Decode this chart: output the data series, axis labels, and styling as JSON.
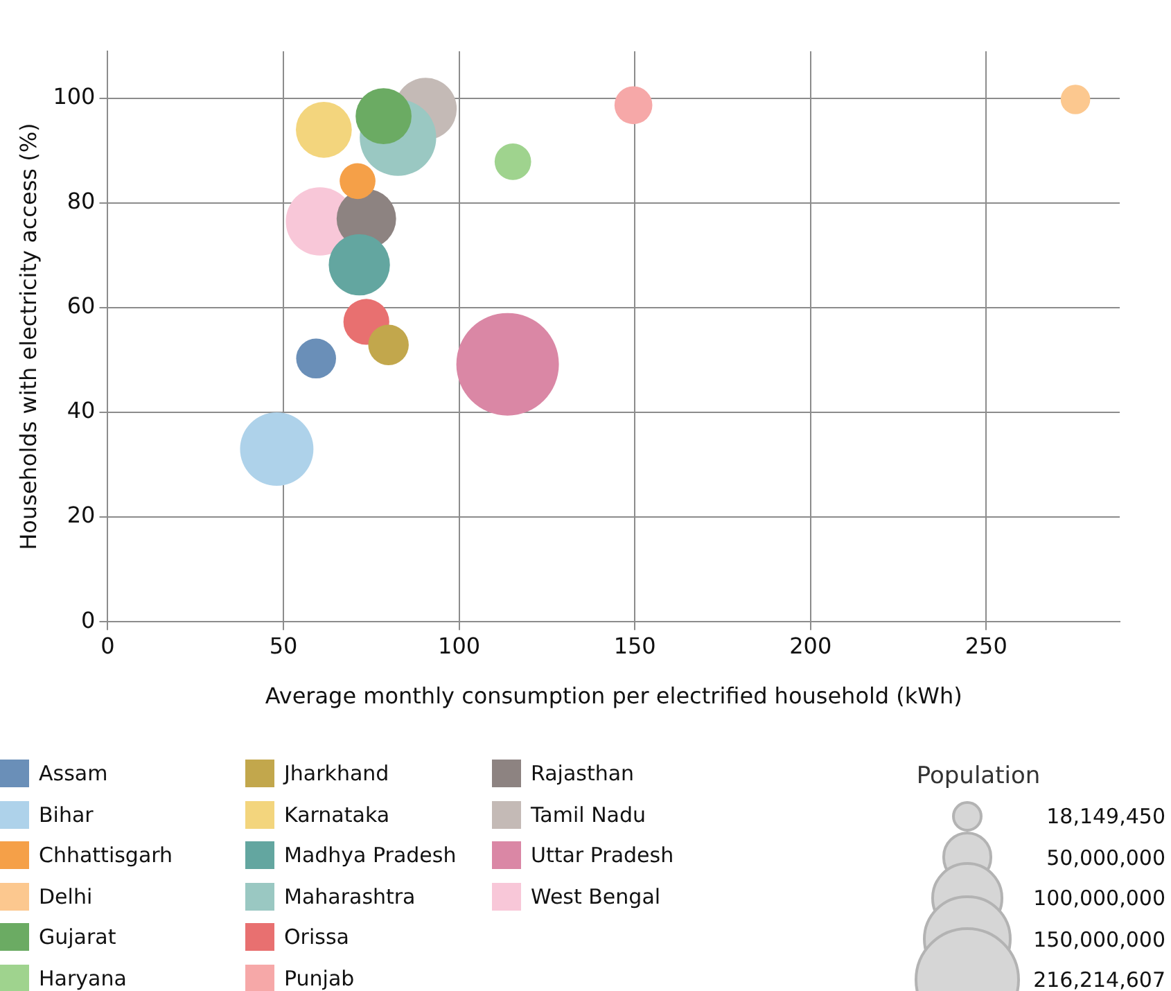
{
  "chart_data": {
    "type": "bubble",
    "xlabel": "Average monthly consumption per electrified household (kWh)",
    "ylabel": "Households with electricity access (%)",
    "legend_title": "Population",
    "xlim": [
      0,
      288
    ],
    "ylim": [
      0,
      109
    ],
    "xticks": [
      0,
      50,
      100,
      150,
      200,
      250
    ],
    "yticks": [
      0,
      20,
      40,
      60,
      80,
      100
    ],
    "grid": true,
    "legend": "bottom",
    "size_legend": [
      {
        "value": 18149450,
        "label": "18,149,450"
      },
      {
        "value": 50000000,
        "label": "50,000,000"
      },
      {
        "value": 100000000,
        "label": "100,000,000"
      },
      {
        "value": 150000000,
        "label": "150,000,000"
      },
      {
        "value": 216214607,
        "label": "216,214,607"
      }
    ],
    "series": [
      {
        "name": "Assam",
        "color": "#6a8fb8",
        "x": [
          59.3
        ],
        "values": [
          50.3
        ],
        "sizes": [
          31000000
        ]
      },
      {
        "name": "Bihar",
        "color": "#aed2ea",
        "x": [
          48.1
        ],
        "values": [
          33.0
        ],
        "sizes": [
          105000000
        ]
      },
      {
        "name": "Chhattisgarh",
        "color": "#f5a048",
        "x": [
          71.1
        ],
        "values": [
          84.2
        ],
        "sizes": [
          25000000
        ]
      },
      {
        "name": "Delhi",
        "color": "#fcc88f",
        "x": [
          275.4
        ],
        "values": [
          99.8
        ],
        "sizes": [
          17000000
        ]
      },
      {
        "name": "Gujarat",
        "color": "#6bab63",
        "x": [
          78.5
        ],
        "values": [
          96.6
        ],
        "sizes": [
          61000000
        ]
      },
      {
        "name": "Haryana",
        "color": "#9fd38e",
        "x": [
          115.3
        ],
        "values": [
          87.9
        ],
        "sizes": [
          26000000
        ]
      },
      {
        "name": "Jharkhand",
        "color": "#c2a74c",
        "x": [
          79.9
        ],
        "values": [
          52.9
        ],
        "sizes": [
          32000000
        ]
      },
      {
        "name": "Karnataka",
        "color": "#f3d57d",
        "x": [
          61.5
        ],
        "values": [
          94.0
        ],
        "sizes": [
          61000000
        ]
      },
      {
        "name": "Madhya Pradesh",
        "color": "#63a6a0",
        "x": [
          71.6
        ],
        "values": [
          68.2
        ],
        "sizes": [
          73000000
        ]
      },
      {
        "name": "Maharashtra",
        "color": "#9ac8c2",
        "x": [
          82.6
        ],
        "values": [
          92.5
        ],
        "sizes": [
          114000000
        ]
      },
      {
        "name": "Orissa",
        "color": "#e87070",
        "x": [
          73.6
        ],
        "values": [
          57.3
        ],
        "sizes": [
          41000000
        ]
      },
      {
        "name": "Punjab",
        "color": "#f6a8a8",
        "x": [
          149.6
        ],
        "values": [
          98.7
        ],
        "sizes": [
          28000000
        ]
      },
      {
        "name": "Rajasthan",
        "color": "#8d8381",
        "x": [
          73.6
        ],
        "values": [
          77.0
        ],
        "sizes": [
          69000000
        ]
      },
      {
        "name": "Tamil Nadu",
        "color": "#c4bab6",
        "x": [
          90.5
        ],
        "values": [
          98.0
        ],
        "sizes": [
          75000000
        ]
      },
      {
        "name": "Uttar Pradesh",
        "color": "#da87a5",
        "x": [
          113.8
        ],
        "values": [
          49.2
        ],
        "sizes": [
          205000000
        ]
      },
      {
        "name": "West Bengal",
        "color": "#f8c7d8",
        "x": [
          60.4
        ],
        "values": [
          76.5
        ],
        "sizes": [
          91000000
        ]
      }
    ]
  }
}
